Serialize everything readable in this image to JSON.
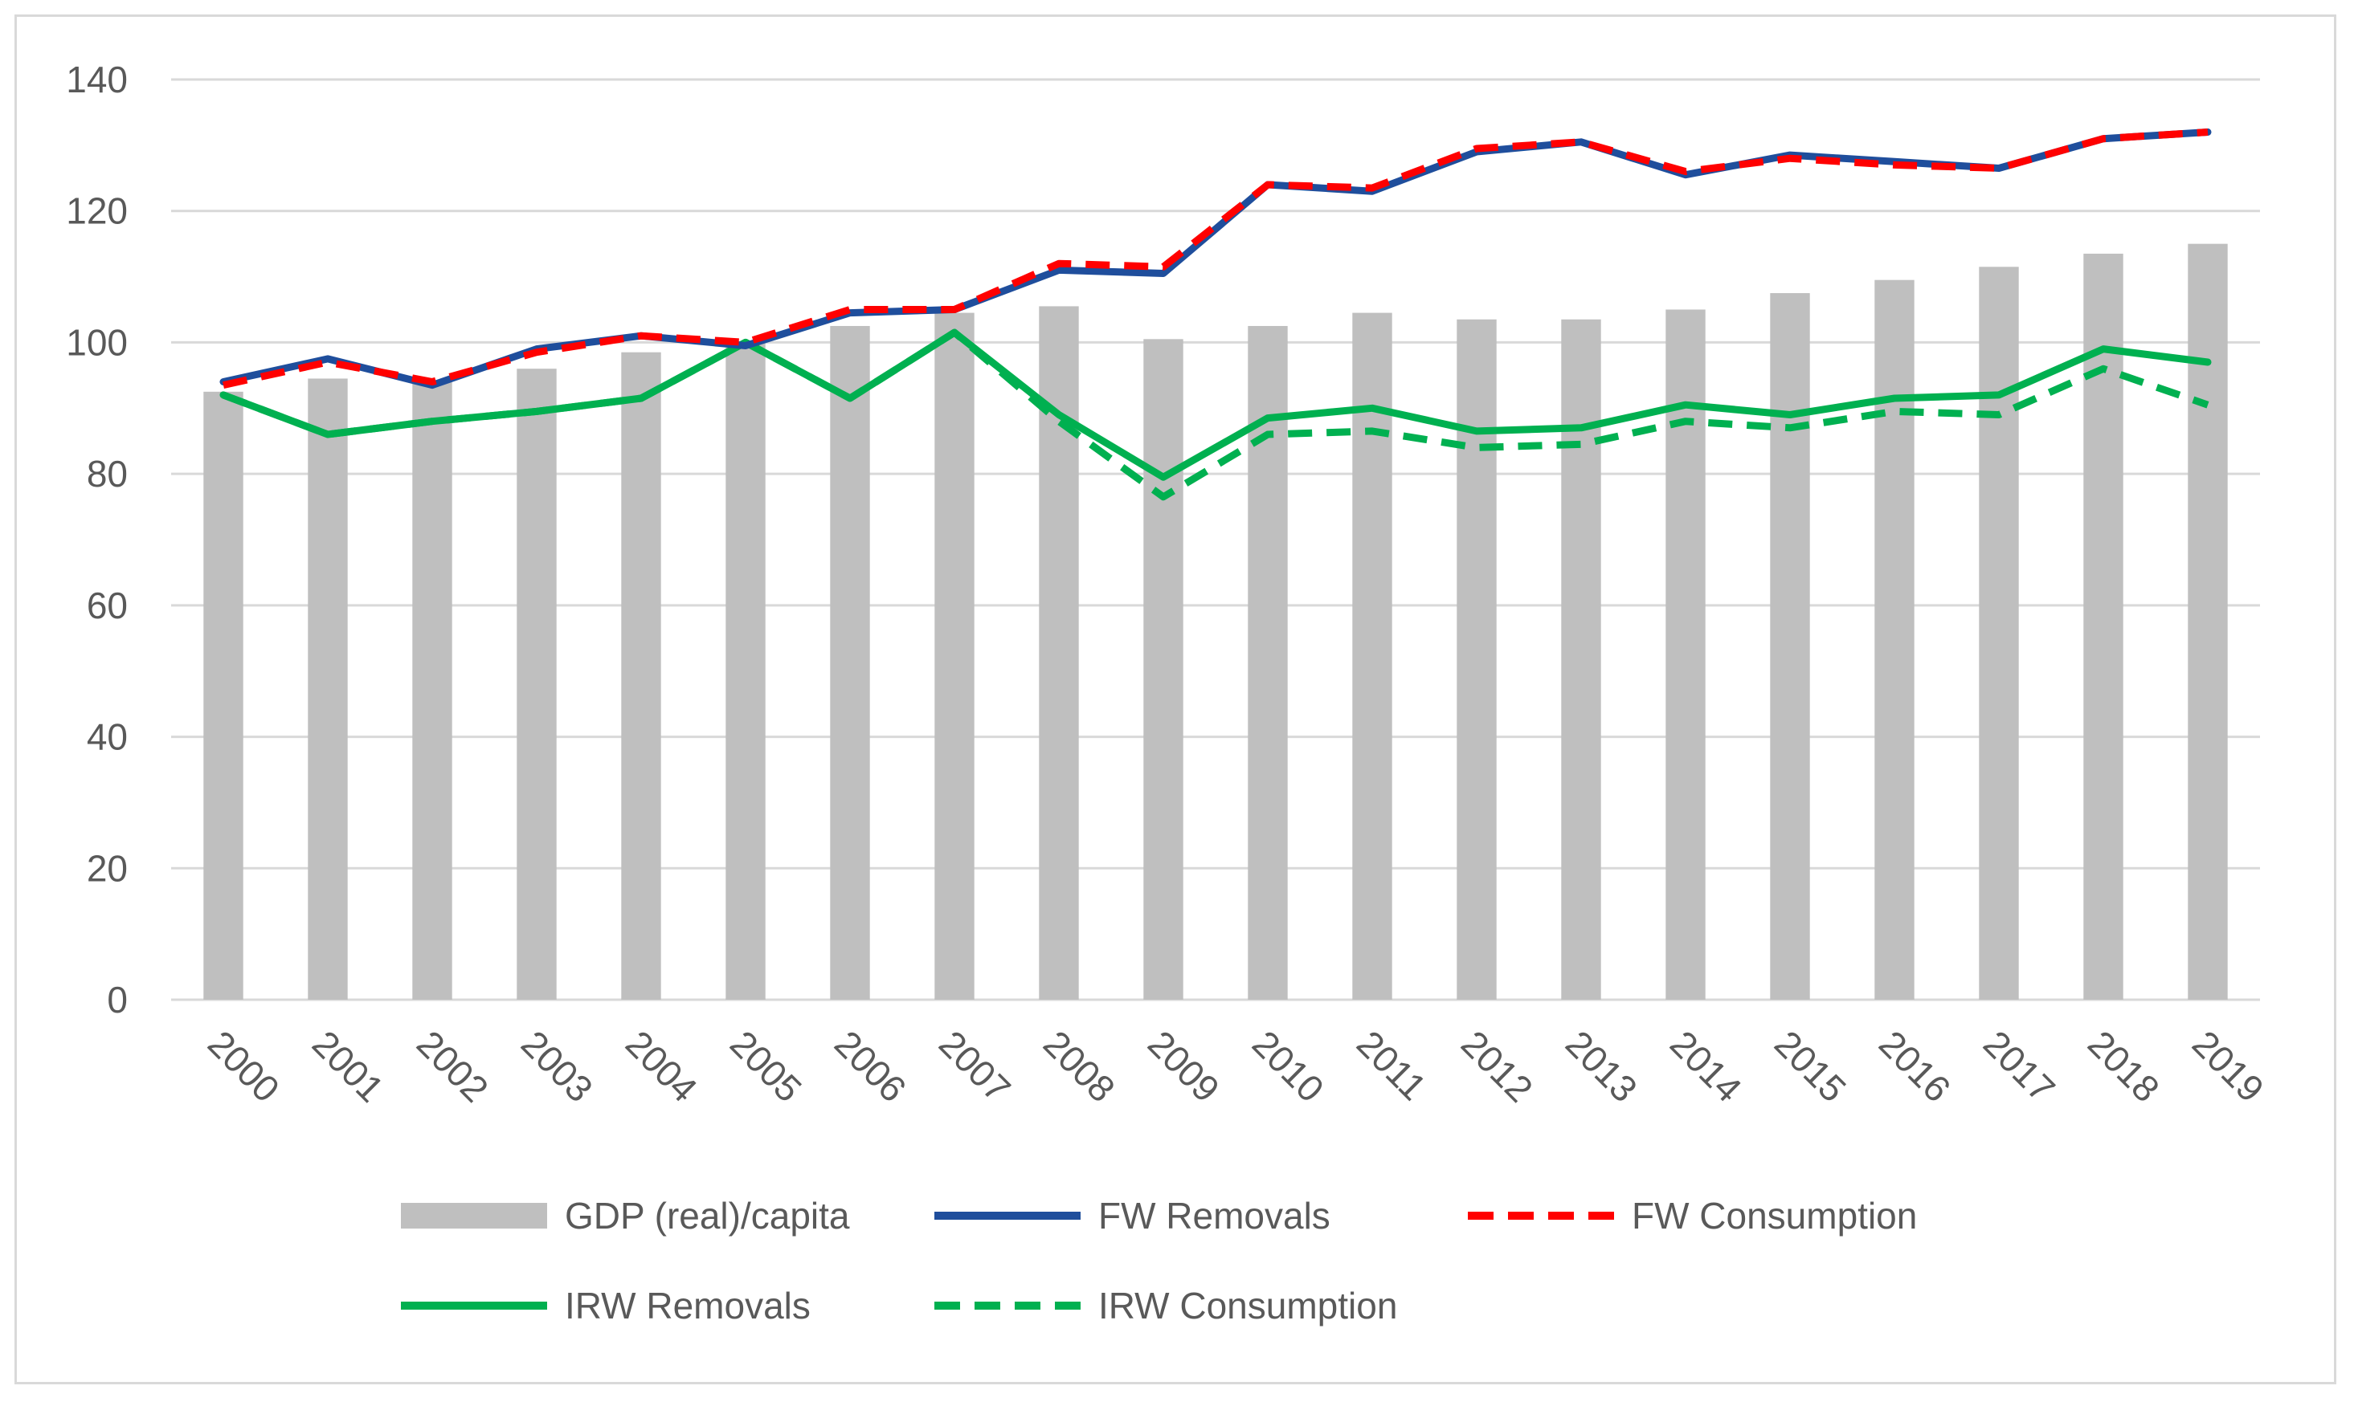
{
  "chart_data": {
    "type": "bar",
    "title": "",
    "xlabel": "",
    "ylabel": "",
    "ylim": [
      0,
      140
    ],
    "yticks": [
      0,
      20,
      40,
      60,
      80,
      100,
      120,
      140
    ],
    "grid": true,
    "legend_position": "bottom",
    "categories": [
      "2000",
      "2001",
      "2002",
      "2003",
      "2004",
      "2005",
      "2006",
      "2007",
      "2008",
      "2009",
      "2010",
      "2011",
      "2012",
      "2013",
      "2014",
      "2015",
      "2016",
      "2017",
      "2018",
      "2019"
    ],
    "series": [
      {
        "name": "GDP (real)/capita",
        "kind": "bar",
        "color": "#bfbfbf",
        "values": [
          92.5,
          94.5,
          94,
          96,
          98.5,
          100,
          102.5,
          104.5,
          105.5,
          100.5,
          102.5,
          104.5,
          103.5,
          103.5,
          105,
          107.5,
          109.5,
          111.5,
          113.5,
          115
        ]
      },
      {
        "name": "FW Removals",
        "kind": "line",
        "style": "solid",
        "color": "#1f4e9c",
        "values": [
          94,
          97.5,
          93.5,
          99,
          101,
          99.5,
          104.5,
          105,
          111,
          110.5,
          124,
          123,
          129,
          130.5,
          125.5,
          128.5,
          127.5,
          126.5,
          131,
          132
        ]
      },
      {
        "name": "FW Consumption",
        "kind": "line",
        "style": "dashed",
        "color": "#ff0000",
        "values": [
          93.5,
          97,
          94,
          98.5,
          101,
          100,
          105,
          105,
          112,
          111.5,
          124,
          123.5,
          129.5,
          130.5,
          126,
          128,
          127,
          126.5,
          131,
          132
        ]
      },
      {
        "name": "IRW Removals",
        "kind": "line",
        "style": "solid",
        "color": "#00b050",
        "values": [
          92,
          86,
          88,
          89.5,
          91.5,
          100,
          91.5,
          101.5,
          89,
          79.5,
          88.5,
          90,
          86.5,
          87,
          90.5,
          89,
          91.5,
          92,
          99,
          97
        ]
      },
      {
        "name": "IRW Consumption",
        "kind": "line",
        "style": "dashed",
        "color": "#00b050",
        "values": [
          92,
          86,
          88,
          89.5,
          91.5,
          100,
          91.5,
          101.5,
          88,
          76.5,
          86,
          86.5,
          84,
          84.5,
          88,
          87,
          89.5,
          89,
          96,
          90.5
        ]
      }
    ]
  }
}
